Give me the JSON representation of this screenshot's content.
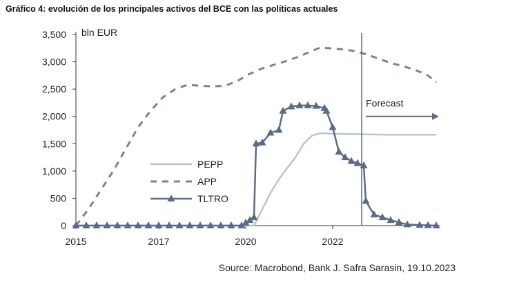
{
  "title": "Gráfico 4: evolución de los principales activos del BCE con las políticas actuales",
  "source": "Source: Macrobond, Bank J. Safra Sarasin, 19.10.2023",
  "colors": {
    "pepp": "#b9c4d3",
    "app": "#8b816e",
    "tltro": "#5b6b86",
    "forecast": "#5b6b86"
  },
  "chart_data": {
    "type": "line",
    "title": "Gráfico 4: evolución de los principales activos del BCE con las políticas actuales",
    "ylabel": "bln EUR",
    "xlabel": "",
    "xlim": [
      2015,
      2023.8
    ],
    "ylim": [
      0,
      3500
    ],
    "x_ticks": [
      "2015",
      "2017",
      "2020",
      "2022"
    ],
    "x_tick_values": [
      2015,
      2017,
      2019.1,
      2021.2
    ],
    "y_ticks": [
      "0",
      "500",
      "1,000",
      "1,500",
      "2,000",
      "2,500",
      "3,000",
      "3,500"
    ],
    "y_tick_values": [
      0,
      500,
      1000,
      1500,
      2000,
      2500,
      3000,
      3500
    ],
    "legend_position": "center-left",
    "forecast": {
      "label": "Forecast",
      "x": 2021.9
    },
    "series": [
      {
        "name": "PEPP",
        "style": "solid",
        "x": [
          2015,
          2019.3,
          2019.5,
          2019.7,
          2019.9,
          2020.1,
          2020.3,
          2020.5,
          2020.7,
          2020.9,
          2021.0,
          2021.1,
          2021.3,
          2021.6,
          2022.0,
          2022.5,
          2023.0,
          2023.7
        ],
        "y": [
          0,
          0,
          300,
          600,
          850,
          1050,
          1250,
          1500,
          1650,
          1690,
          1690,
          1685,
          1680,
          1675,
          1670,
          1665,
          1665,
          1665
        ]
      },
      {
        "name": "APP",
        "style": "dashed",
        "x": [
          2015,
          2015.3,
          2015.6,
          2015.9,
          2016.2,
          2016.5,
          2016.8,
          2017.1,
          2017.4,
          2017.7,
          2018.0,
          2018.3,
          2018.6,
          2018.9,
          2019.2,
          2019.5,
          2019.8,
          2020.1,
          2020.4,
          2020.7,
          2020.9,
          2021.1,
          2021.4,
          2021.7,
          2022.0,
          2022.3,
          2022.6,
          2022.9,
          2023.2,
          2023.5,
          2023.7
        ],
        "y": [
          0,
          300,
          650,
          1000,
          1400,
          1800,
          2100,
          2350,
          2500,
          2580,
          2560,
          2550,
          2560,
          2650,
          2780,
          2880,
          2950,
          3020,
          3100,
          3200,
          3260,
          3250,
          3230,
          3200,
          3140,
          3060,
          2980,
          2920,
          2850,
          2750,
          2620
        ]
      },
      {
        "name": "TLTRO",
        "style": "solid-triangle",
        "x": [
          2015,
          2015.25,
          2015.5,
          2015.75,
          2016.0,
          2016.25,
          2016.5,
          2016.75,
          2017.0,
          2017.25,
          2017.5,
          2017.75,
          2018.0,
          2018.25,
          2018.5,
          2018.75,
          2019.0,
          2019.1,
          2019.2,
          2019.3,
          2019.35,
          2019.5,
          2019.7,
          2019.9,
          2020.0,
          2020.2,
          2020.4,
          2020.6,
          2020.8,
          2021.0,
          2021.05,
          2021.2,
          2021.35,
          2021.5,
          2021.65,
          2021.8,
          2021.95,
          2022.0,
          2022.2,
          2022.4,
          2022.6,
          2022.8,
          2023.0,
          2023.3,
          2023.5,
          2023.7
        ],
        "y": [
          0,
          0,
          0,
          0,
          0,
          0,
          0,
          0,
          0,
          0,
          0,
          0,
          0,
          0,
          0,
          0,
          0,
          50,
          100,
          150,
          1500,
          1520,
          1700,
          1750,
          2100,
          2180,
          2200,
          2200,
          2190,
          2150,
          2100,
          1800,
          1350,
          1250,
          1180,
          1140,
          1100,
          450,
          200,
          150,
          100,
          60,
          20,
          10,
          5,
          0
        ]
      }
    ]
  }
}
